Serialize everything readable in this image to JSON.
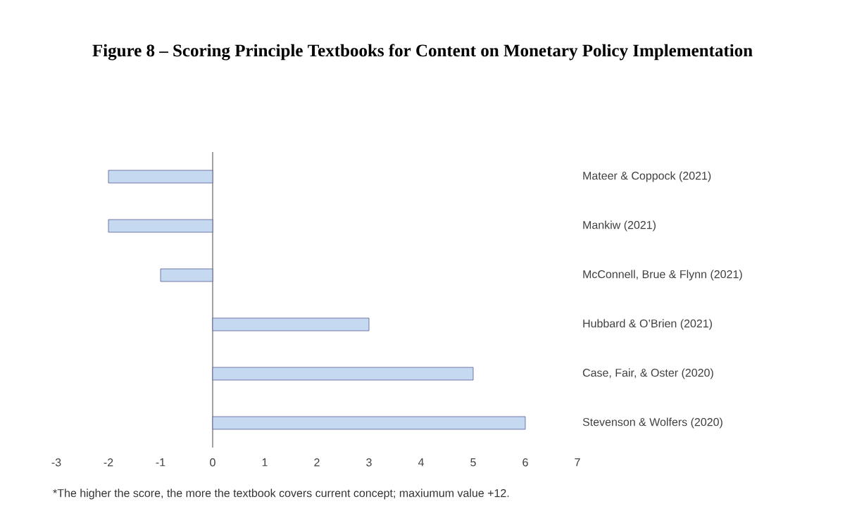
{
  "chart_data": {
    "type": "bar",
    "orientation": "horizontal",
    "title": "Figure 8 – Scoring Principle Textbooks for Content on Monetary Policy Implementation",
    "categories": [
      "Mateer & Coppock (2021)",
      "Mankiw (2021)",
      "McConnell, Brue & Flynn (2021)",
      "Hubbard & O’Brien (2021)",
      "Case, Fair, & Oster (2020)",
      "Stevenson & Wolfers (2020)"
    ],
    "values": [
      -2,
      -2,
      -1,
      3,
      5,
      6
    ],
    "color": "#c5d9f1",
    "xlim": [
      -3,
      7
    ],
    "xticks": [
      -3,
      -2,
      -1,
      0,
      1,
      2,
      3,
      4,
      5,
      6,
      7
    ],
    "annotations": [
      "*The higher the score, the more the textbook covers current concept; maxiumum value +12."
    ]
  }
}
